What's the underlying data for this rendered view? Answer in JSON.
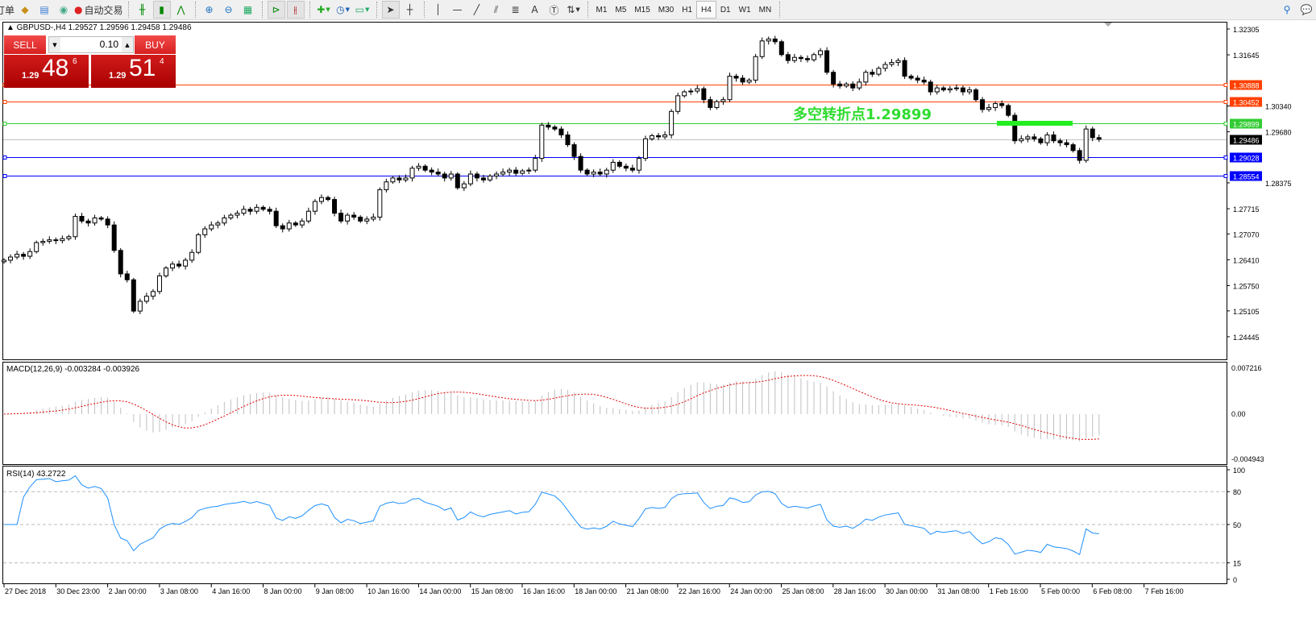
{
  "toolbar": {
    "partial_label": "订单",
    "auto_trading_label": "自动交易",
    "icons": [
      "navigator-icon",
      "account-icon",
      "signals-icon",
      "auto-trading-icon",
      "bar-chart-icon",
      "candlestick-icon",
      "line-chart-icon",
      "zoom-in-icon",
      "zoom-out-icon",
      "tile-windows-icon",
      "autoscroll-icon",
      "chart-shift-icon",
      "indicators-icon",
      "periods-icon",
      "templates-icon",
      "cursor-icon",
      "crosshair-icon",
      "vertical-line-icon",
      "horizontal-line-icon",
      "trendline-icon",
      "equidistant-channel-icon",
      "fibonacci-icon",
      "text-icon",
      "text-label-icon",
      "arrows-icon",
      "search-icon",
      "chat-icon"
    ],
    "text_tool": "A",
    "timeframes": [
      "M1",
      "M5",
      "M15",
      "M30",
      "H1",
      "H4",
      "D1",
      "W1",
      "MN"
    ],
    "active_timeframe": "H4"
  },
  "chart": {
    "header": "▲ GBPUSD-,H4  1.29527 1.29596 1.29458 1.29486",
    "symbol": "GBPUSD-",
    "timeframe": "H4",
    "trade_panel": {
      "sell_label": "SELL",
      "buy_label": "BUY",
      "lot": "0.10",
      "sell_small": "1.29",
      "sell_big": "48",
      "sell_tiny": "6",
      "buy_small": "1.29",
      "buy_big": "51",
      "buy_tiny": "4"
    },
    "annotation": "多空转折点1.29899",
    "annotation_color": "#2fdc2f",
    "price_axis": [
      "1.32305",
      "1.31645",
      "1.30340",
      "1.29680",
      "1.28375",
      "1.27715",
      "1.27070",
      "1.26410",
      "1.25750",
      "1.25105",
      "1.24445"
    ],
    "hlines": [
      {
        "price": 1.30888,
        "label": "1.30888",
        "color": "#ff4000"
      },
      {
        "price": 1.30452,
        "label": "1.30452",
        "color": "#ff4000"
      },
      {
        "price": 1.29899,
        "label": "1.29899",
        "color": "#33cc33"
      },
      {
        "price": 1.29486,
        "label": "1.29486",
        "color": "#c0c0c0",
        "bid": true
      },
      {
        "price": 1.29028,
        "label": "1.29028",
        "color": "#0000ff"
      },
      {
        "price": 1.28554,
        "label": "1.28554",
        "color": "#0000ff"
      }
    ],
    "time_axis": [
      "27 Dec 2018",
      "30 Dec 23:00",
      "2 Jan 00:00",
      "3 Jan 08:00",
      "4 Jan 16:00",
      "8 Jan 00:00",
      "9 Jan 08:00",
      "10 Jan 16:00",
      "14 Jan 00:00",
      "15 Jan 08:00",
      "16 Jan 16:00",
      "18 Jan 00:00",
      "21 Jan 08:00",
      "22 Jan 16:00",
      "24 Jan 00:00",
      "25 Jan 08:00",
      "28 Jan 16:00",
      "30 Jan 00:00",
      "31 Jan 08:00",
      "1 Feb 16:00",
      "5 Feb 00:00",
      "6 Feb 08:00",
      "7 Feb 16:00"
    ],
    "closes": [
      1.264,
      1.2648,
      1.2655,
      1.265,
      1.2662,
      1.2685,
      1.2688,
      1.2692,
      1.269,
      1.2695,
      1.27,
      1.2752,
      1.274,
      1.2735,
      1.2748,
      1.2745,
      1.273,
      1.2665,
      1.2605,
      1.259,
      1.251,
      1.2535,
      1.2548,
      1.256,
      1.26,
      1.262,
      1.263,
      1.2625,
      1.264,
      1.266,
      1.2705,
      1.272,
      1.273,
      1.2735,
      1.2748,
      1.2755,
      1.276,
      1.277,
      1.2765,
      1.2775,
      1.277,
      1.2765,
      1.2728,
      1.272,
      1.2735,
      1.273,
      1.274,
      1.2765,
      1.279,
      1.28,
      1.2795,
      1.276,
      1.274,
      1.2755,
      1.275,
      1.274,
      1.2745,
      1.275,
      1.282,
      1.284,
      1.285,
      1.2845,
      1.285,
      1.2875,
      1.288,
      1.287,
      1.2865,
      1.286,
      1.285,
      1.286,
      1.2825,
      1.2835,
      1.286,
      1.285,
      1.2845,
      1.2855,
      1.286,
      1.2865,
      1.287,
      1.2862,
      1.2868,
      1.287,
      1.29,
      1.2985,
      1.298,
      1.2975,
      1.296,
      1.2935,
      1.2905,
      1.287,
      1.286,
      1.2865,
      1.286,
      1.287,
      1.289,
      1.288,
      1.2875,
      1.287,
      1.29,
      1.295,
      1.2958,
      1.2955,
      1.296,
      1.302,
      1.306,
      1.307,
      1.3072,
      1.3078,
      1.305,
      1.303,
      1.3045,
      1.305,
      1.311,
      1.3105,
      1.3095,
      1.31,
      1.316,
      1.32,
      1.3205,
      1.3198,
      1.3165,
      1.315,
      1.3158,
      1.3155,
      1.3152,
      1.3165,
      1.3175,
      1.312,
      1.309,
      1.3085,
      1.309,
      1.308,
      1.3095,
      1.312,
      1.3115,
      1.313,
      1.314,
      1.3145,
      1.315,
      1.311,
      1.3105,
      1.31,
      1.3095,
      1.307,
      1.308,
      1.3075,
      1.3078,
      1.308,
      1.307,
      1.3075,
      1.305,
      1.3025,
      1.303,
      1.304,
      1.3035,
      1.301,
      1.2945,
      1.295,
      1.2955,
      1.295,
      1.294,
      1.296,
      1.2945,
      1.294,
      1.2935,
      1.292,
      1.2895,
      1.2975,
      1.2953,
      1.2949
    ]
  },
  "macd": {
    "label": "MACD(12,26,9) -0.003284 -0.003926",
    "axis": [
      "0.007216",
      "0.00",
      "-0.004943"
    ],
    "histogram_color": "#c0c0c0",
    "signal_color": "#e00000"
  },
  "rsi": {
    "label": "RSI(14) 43.2722",
    "axis": [
      "100",
      "80",
      "50",
      "15",
      "0"
    ],
    "levels": [
      80,
      50,
      15
    ],
    "line_color": "#1e90ff"
  }
}
